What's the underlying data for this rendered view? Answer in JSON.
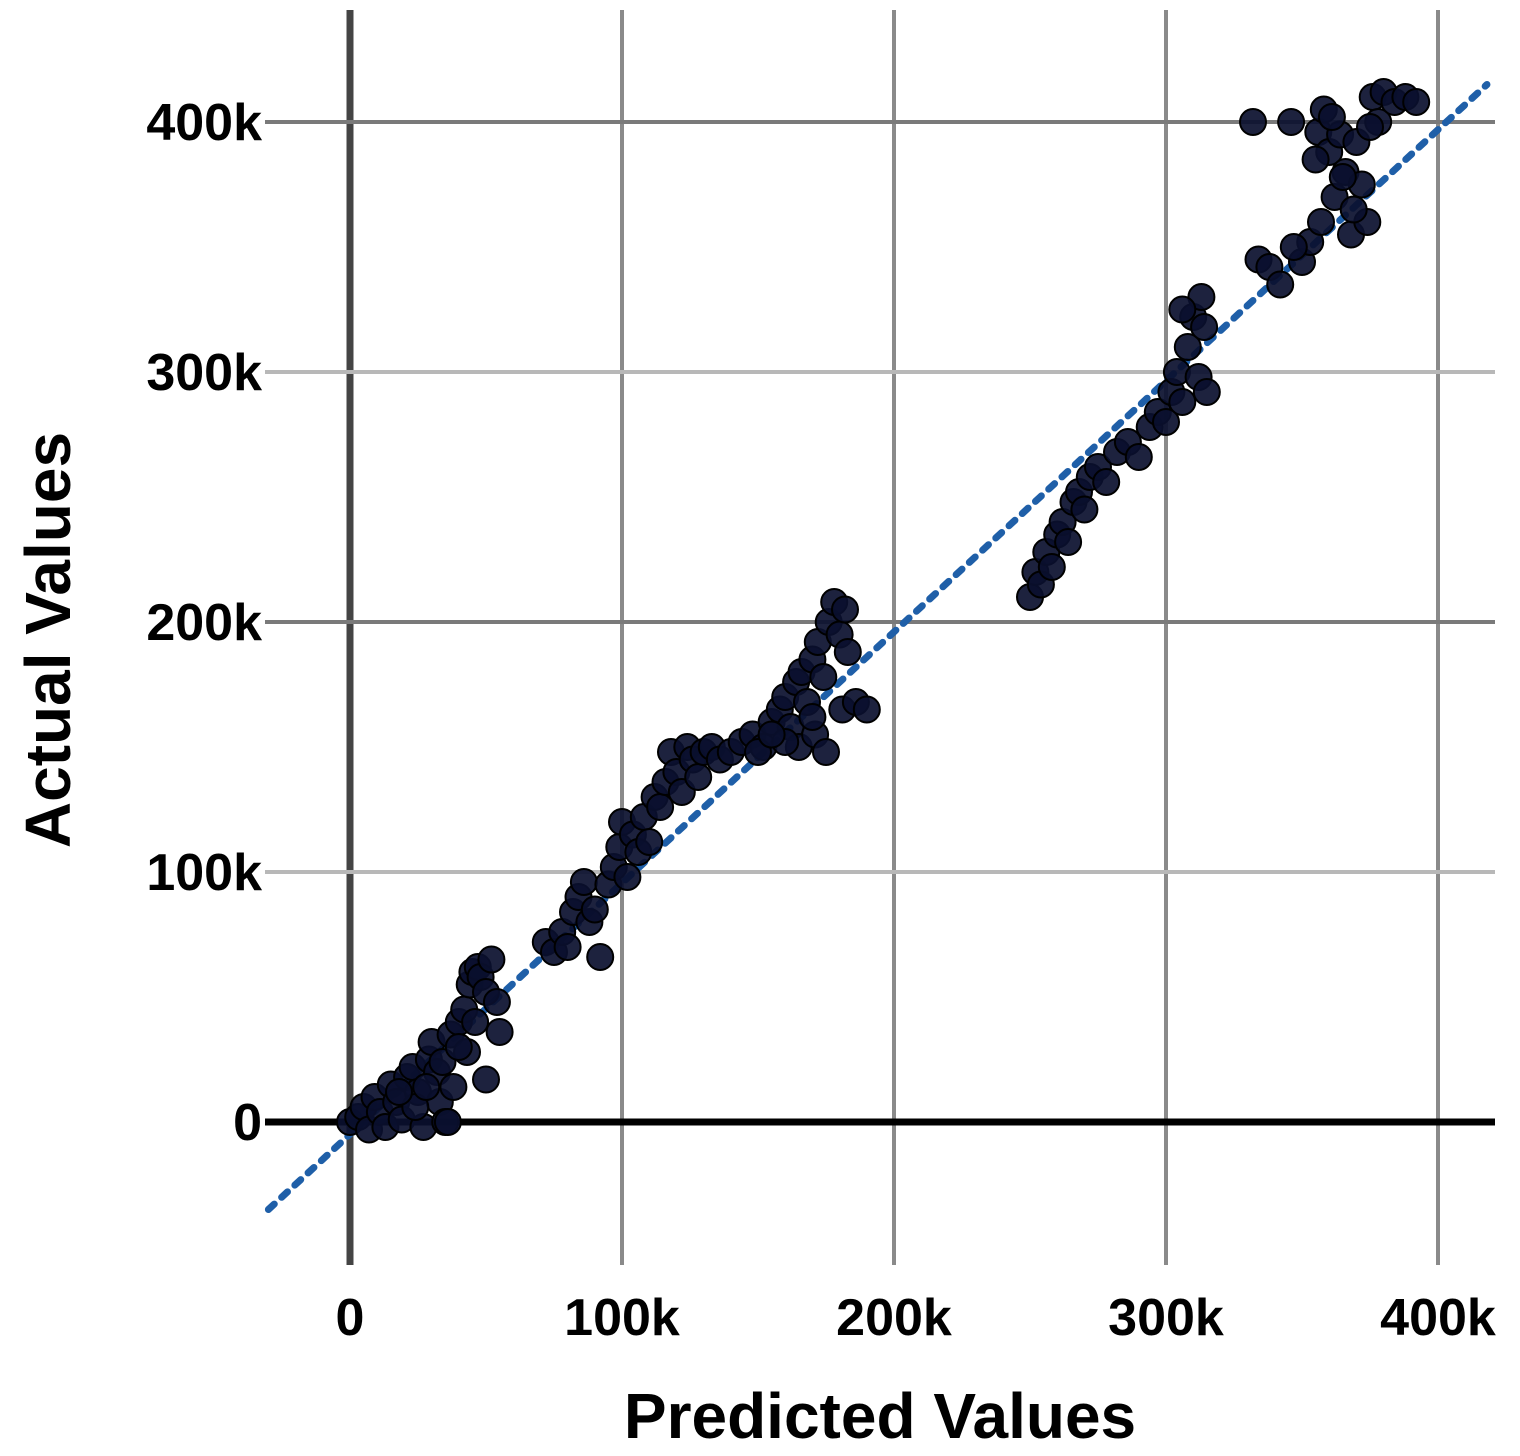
{
  "chart_data": {
    "type": "scatter",
    "xlabel": "Predicted Values",
    "ylabel": "Actual Values",
    "xlim": [
      -35000,
      420000
    ],
    "ylim": [
      -60000,
      440000
    ],
    "x_ticks": [
      0,
      100000,
      200000,
      300000,
      400000
    ],
    "x_tick_labels": [
      "0",
      "100k",
      "200k",
      "300k",
      "400k"
    ],
    "y_ticks": [
      0,
      100000,
      200000,
      300000,
      400000
    ],
    "y_tick_labels": [
      "0",
      "100k",
      "200k",
      "300k",
      "400k"
    ],
    "grid": true,
    "legend": "none",
    "colors": {
      "points": "#0a0f2e",
      "trendline": "#1f5fa8",
      "grid": "#8a8a8a",
      "zero_line": "#000000"
    },
    "trendline": {
      "style": "dotted",
      "from": [
        -30000,
        -35000
      ],
      "to": [
        418000,
        415000
      ]
    },
    "points": [
      [
        0,
        0
      ],
      [
        3000,
        2000
      ],
      [
        5000,
        6000
      ],
      [
        7000,
        -3000
      ],
      [
        9000,
        10000
      ],
      [
        11000,
        4000
      ],
      [
        13000,
        -2000
      ],
      [
        15000,
        15000
      ],
      [
        17000,
        8000
      ],
      [
        19000,
        1000
      ],
      [
        21000,
        18000
      ],
      [
        23000,
        22000
      ],
      [
        25000,
        12000
      ],
      [
        27000,
        -2000
      ],
      [
        29000,
        25000
      ],
      [
        30000,
        32000
      ],
      [
        32000,
        20000
      ],
      [
        33000,
        8000
      ],
      [
        35000,
        0
      ],
      [
        37000,
        35000
      ],
      [
        38000,
        14000
      ],
      [
        40000,
        40000
      ],
      [
        42000,
        45000
      ],
      [
        43000,
        28000
      ],
      [
        44000,
        55000
      ],
      [
        45000,
        60000
      ],
      [
        46000,
        40000
      ],
      [
        47000,
        62000
      ],
      [
        48000,
        58000
      ],
      [
        50000,
        52000
      ],
      [
        52000,
        65000
      ],
      [
        54000,
        48000
      ],
      [
        55000,
        36000
      ],
      [
        50000,
        17000
      ],
      [
        36000,
        0
      ],
      [
        24000,
        6000
      ],
      [
        18000,
        12000
      ],
      [
        28000,
        14000
      ],
      [
        34000,
        24000
      ],
      [
        40000,
        30000
      ],
      [
        72000,
        72000
      ],
      [
        75000,
        68000
      ],
      [
        78000,
        76000
      ],
      [
        80000,
        70000
      ],
      [
        82000,
        84000
      ],
      [
        84000,
        90000
      ],
      [
        86000,
        96000
      ],
      [
        88000,
        80000
      ],
      [
        90000,
        85000
      ],
      [
        92000,
        66000
      ],
      [
        95000,
        95000
      ],
      [
        97000,
        102000
      ],
      [
        99000,
        110000
      ],
      [
        100000,
        120000
      ],
      [
        102000,
        98000
      ],
      [
        104000,
        115000
      ],
      [
        106000,
        108000
      ],
      [
        108000,
        122000
      ],
      [
        110000,
        112000
      ],
      [
        112000,
        130000
      ],
      [
        114000,
        126000
      ],
      [
        116000,
        136000
      ],
      [
        118000,
        148000
      ],
      [
        120000,
        140000
      ],
      [
        122000,
        132000
      ],
      [
        124000,
        150000
      ],
      [
        126000,
        145000
      ],
      [
        128000,
        138000
      ],
      [
        130000,
        148000
      ],
      [
        133000,
        150000
      ],
      [
        136000,
        145000
      ],
      [
        140000,
        148000
      ],
      [
        144000,
        152000
      ],
      [
        148000,
        155000
      ],
      [
        152000,
        150000
      ],
      [
        155000,
        160000
      ],
      [
        158000,
        165000
      ],
      [
        160000,
        170000
      ],
      [
        162000,
        158000
      ],
      [
        164000,
        176000
      ],
      [
        165000,
        150000
      ],
      [
        166000,
        180000
      ],
      [
        168000,
        168000
      ],
      [
        170000,
        185000
      ],
      [
        171000,
        155000
      ],
      [
        172000,
        192000
      ],
      [
        174000,
        178000
      ],
      [
        175000,
        148000
      ],
      [
        176000,
        200000
      ],
      [
        178000,
        208000
      ],
      [
        180000,
        195000
      ],
      [
        181000,
        165000
      ],
      [
        182000,
        205000
      ],
      [
        183000,
        188000
      ],
      [
        186000,
        168000
      ],
      [
        190000,
        165000
      ],
      [
        160000,
        152000
      ],
      [
        150000,
        148000
      ],
      [
        170000,
        162000
      ],
      [
        155000,
        155000
      ],
      [
        250000,
        210000
      ],
      [
        252000,
        220000
      ],
      [
        254000,
        215000
      ],
      [
        256000,
        228000
      ],
      [
        258000,
        222000
      ],
      [
        260000,
        235000
      ],
      [
        262000,
        240000
      ],
      [
        264000,
        232000
      ],
      [
        266000,
        248000
      ],
      [
        268000,
        252000
      ],
      [
        270000,
        245000
      ],
      [
        272000,
        258000
      ],
      [
        275000,
        262000
      ],
      [
        278000,
        256000
      ],
      [
        282000,
        268000
      ],
      [
        286000,
        272000
      ],
      [
        290000,
        266000
      ],
      [
        294000,
        278000
      ],
      [
        297000,
        284000
      ],
      [
        300000,
        280000
      ],
      [
        302000,
        292000
      ],
      [
        304000,
        300000
      ],
      [
        306000,
        288000
      ],
      [
        308000,
        310000
      ],
      [
        310000,
        322000
      ],
      [
        312000,
        298000
      ],
      [
        313000,
        330000
      ],
      [
        314000,
        318000
      ],
      [
        315000,
        292000
      ],
      [
        306000,
        325000
      ],
      [
        332000,
        400000
      ],
      [
        334000,
        345000
      ],
      [
        338000,
        342000
      ],
      [
        342000,
        335000
      ],
      [
        346000,
        400000
      ],
      [
        350000,
        344000
      ],
      [
        353000,
        352000
      ],
      [
        356000,
        396000
      ],
      [
        358000,
        405000
      ],
      [
        360000,
        388000
      ],
      [
        362000,
        370000
      ],
      [
        364000,
        395000
      ],
      [
        366000,
        380000
      ],
      [
        368000,
        355000
      ],
      [
        370000,
        392000
      ],
      [
        372000,
        375000
      ],
      [
        374000,
        360000
      ],
      [
        376000,
        410000
      ],
      [
        378000,
        400000
      ],
      [
        380000,
        412000
      ],
      [
        384000,
        408000
      ],
      [
        388000,
        410000
      ],
      [
        392000,
        408000
      ],
      [
        365000,
        378000
      ],
      [
        369000,
        365000
      ],
      [
        357000,
        360000
      ],
      [
        347000,
        350000
      ],
      [
        361000,
        402000
      ],
      [
        355000,
        385000
      ],
      [
        375000,
        398000
      ]
    ]
  }
}
